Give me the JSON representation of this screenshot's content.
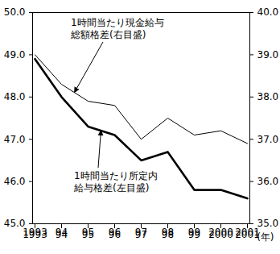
{
  "chart_data": {
    "type": "line",
    "x_label": "(年)",
    "categories": [
      "1993",
      "94",
      "95",
      "96",
      "97",
      "98",
      "99",
      "2000",
      "2001"
    ],
    "ylim": [
      45,
      50
    ],
    "yticks": [
      45,
      46,
      47,
      48,
      49,
      50
    ],
    "y2lim": [
      35,
      40
    ],
    "y2ticks": [
      35,
      36,
      37,
      38,
      39,
      40
    ],
    "series": [
      {
        "name": "1時間当たり所定内\n給与格差(左目盛)",
        "color": "#000000",
        "line_style": "bold",
        "values": [
          48.9,
          48.0,
          47.3,
          47.1,
          46.5,
          46.7,
          45.8,
          45.8,
          45.6
        ]
      },
      {
        "name": "1時間当たり現金給与\n総額格差(右目盛)",
        "color": "#000000",
        "line_style": "thin",
        "axis": "y2",
        "values": [
          39.0,
          38.3,
          37.9,
          37.8,
          37.0,
          37.5,
          37.1,
          37.2,
          36.9
        ]
      }
    ]
  }
}
